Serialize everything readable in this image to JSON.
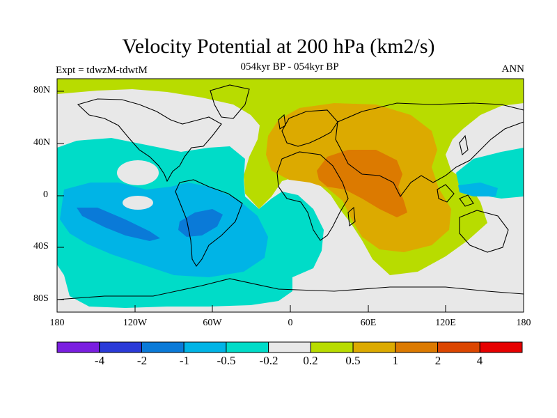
{
  "title": "Velocity Potential at 200 hPa (km2/s)",
  "subtitle": "054kyr BP - 054kyr BP",
  "experiment": "Expt = tdwzM-tdwtM",
  "season": "ANN",
  "y_axis_labels": [
    "80N",
    "40N",
    "0",
    "40S",
    "80S"
  ],
  "x_axis_labels": [
    "180",
    "120W",
    "60W",
    "0",
    "60E",
    "120E",
    "180"
  ],
  "colorbar": {
    "labels": [
      "-4",
      "-2",
      "-1",
      "-0.5",
      "-0.2",
      "0.2",
      "0.5",
      "1",
      "2",
      "4"
    ],
    "colors": [
      "#7a1ee0",
      "#2a3ad8",
      "#0a7ad8",
      "#00b4e6",
      "#00dcc8",
      "#e8e8e8",
      "#b8dc00",
      "#dcaa00",
      "#dc7a00",
      "#dc4600",
      "#e60000"
    ]
  },
  "map_colors": {
    "neutral": "#e8e8e8",
    "pos_02": "#b8dc00",
    "pos_05": "#dcaa00",
    "pos_1": "#dc7a00",
    "neg_02": "#00dcc8",
    "neg_05": "#00b4e6",
    "neg_1": "#0a7ad8"
  }
}
